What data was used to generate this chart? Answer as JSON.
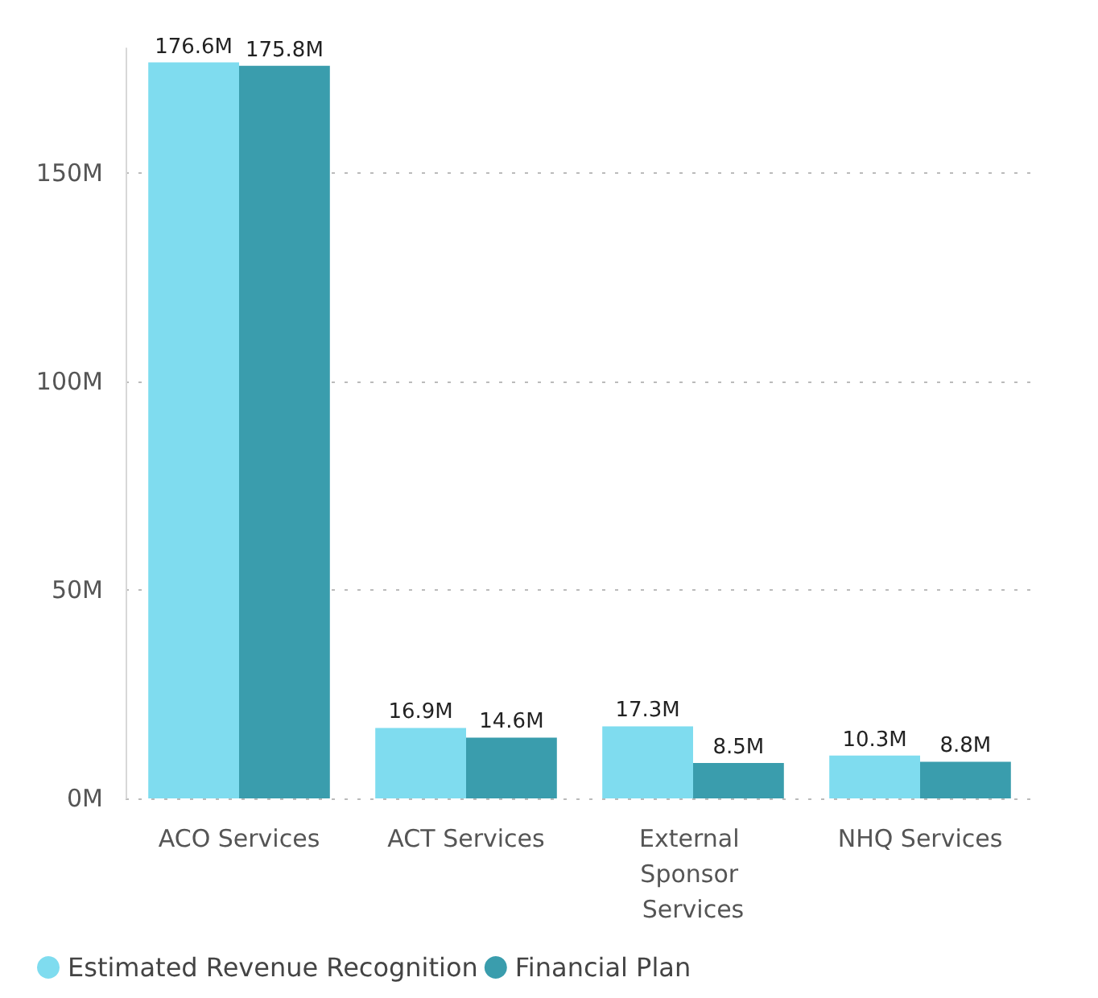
{
  "chart_data": {
    "type": "bar",
    "categories": [
      "ACO Services",
      "ACT Services",
      "External Sponsor Services",
      "NHQ Services"
    ],
    "series": [
      {
        "name": "Estimated Revenue Recognition",
        "color": "#7fdcef",
        "values": [
          176.6,
          16.9,
          17.3,
          10.3
        ],
        "value_labels": [
          "176.6M",
          "16.9M",
          "17.3M",
          "10.3M"
        ]
      },
      {
        "name": "Financial Plan",
        "color": "#3a9dad",
        "values": [
          175.8,
          14.6,
          8.5,
          8.8
        ],
        "value_labels": [
          "175.8M",
          "14.6M",
          "8.5M",
          "8.8M"
        ]
      }
    ],
    "yticks": [
      {
        "value": 0,
        "label": "0M"
      },
      {
        "value": 50,
        "label": "50M"
      },
      {
        "value": 100,
        "label": "100M"
      },
      {
        "value": 150,
        "label": "150M"
      }
    ],
    "ylim": [
      0,
      180
    ],
    "grid": "y",
    "legend": "bottom left"
  }
}
